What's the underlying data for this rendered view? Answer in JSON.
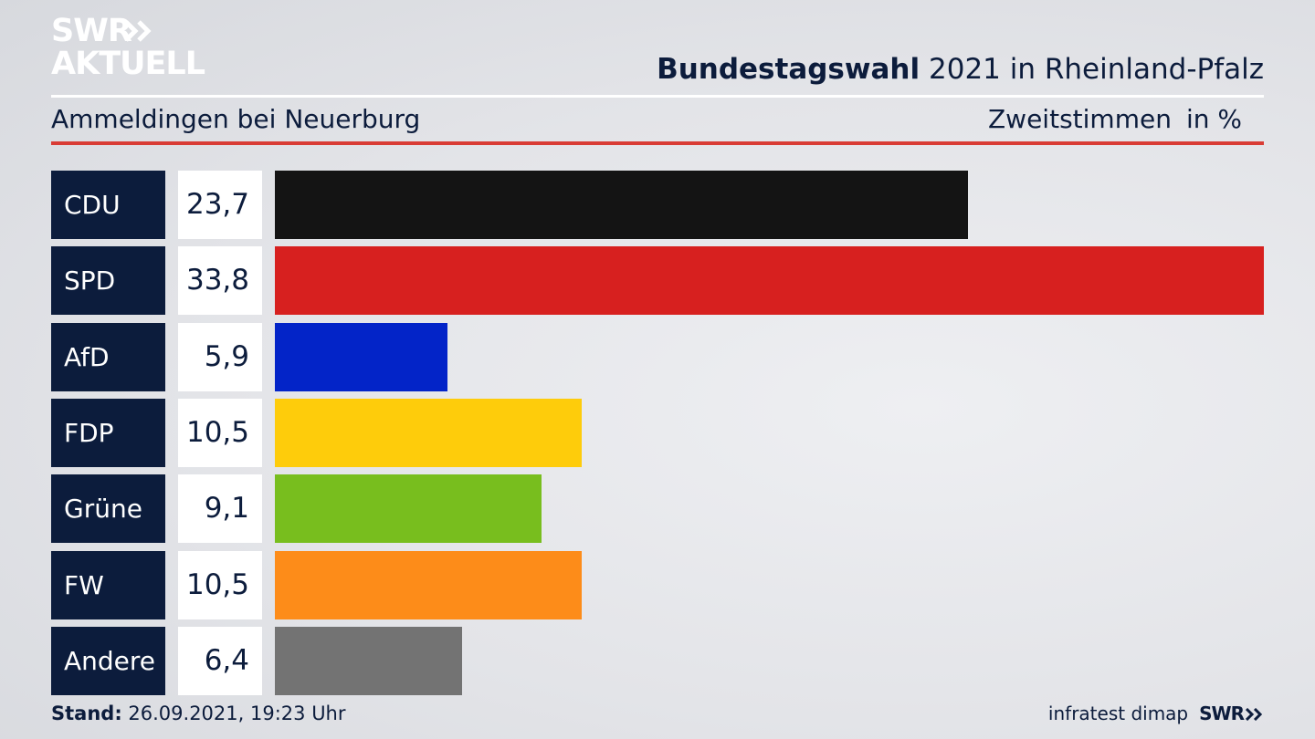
{
  "brand": {
    "logo_line1": "SWR",
    "logo_line2": "AKTUELL",
    "footer_logo": "SWR"
  },
  "header": {
    "title_bold": "Bundestagswahl",
    "title_rest": "2021 in Rheinland-Pfalz",
    "subtitle": "Ammeldingen bei Neuerburg",
    "metric": "Zweitstimmen",
    "unit": "in %"
  },
  "chart_data": {
    "type": "bar",
    "orientation": "horizontal",
    "categories": [
      "CDU",
      "SPD",
      "AfD",
      "FDP",
      "Grüne",
      "FW",
      "Andere"
    ],
    "values": [
      23.7,
      33.8,
      5.9,
      10.5,
      9.1,
      10.5,
      6.4
    ],
    "value_labels": [
      "23,7",
      "33,8",
      "5,9",
      "10,5",
      "9,1",
      "10,5",
      "6,4"
    ],
    "colors": [
      "#141414",
      "#d7201f",
      "#0324c8",
      "#fecc0b",
      "#78be1e",
      "#fd8c19",
      "#737373"
    ],
    "title": "Bundestagswahl 2021 in Rheinland-Pfalz",
    "subtitle": "Ammeldingen bei Neuerburg",
    "xlabel": "",
    "ylabel": "",
    "unit": "in %",
    "grid": false
  },
  "footer": {
    "stand_label": "Stand:",
    "stand_value": "26.09.2021, 19:23 Uhr",
    "source": "infratest dimap"
  }
}
